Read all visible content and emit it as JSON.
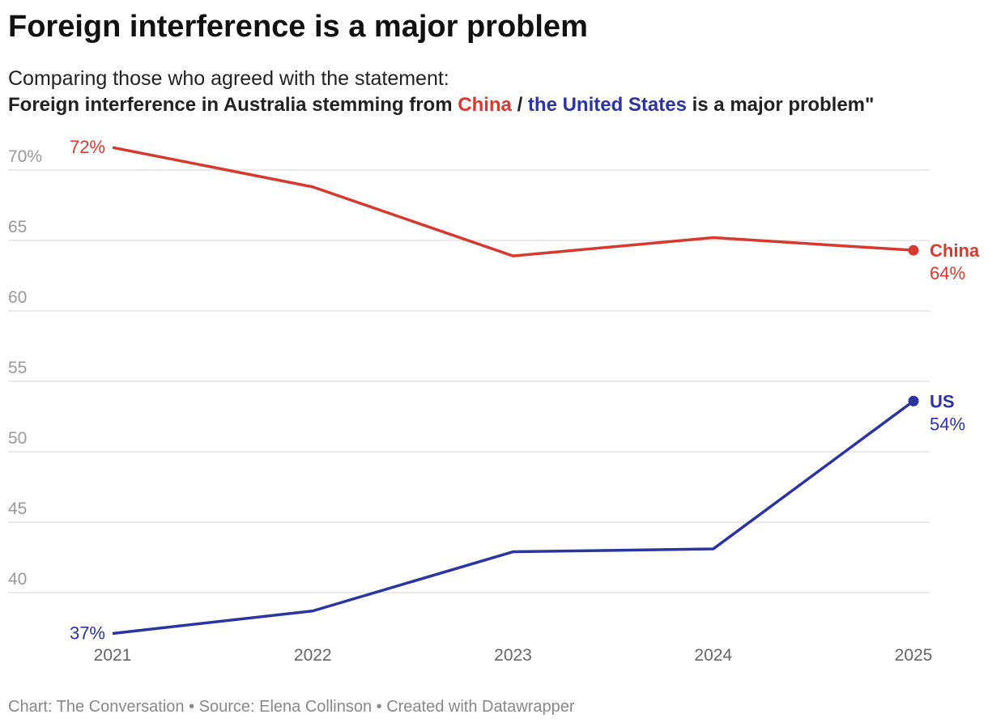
{
  "chart_data": {
    "type": "line",
    "title": "Foreign interference is a major problem",
    "subtitle_line1": "Comparing those who agreed with the statement:",
    "subtitle_line2": {
      "part1": "Foreign interference in Australia stemming from ",
      "china": "China",
      "sep": " / ",
      "us": "the United States",
      "part2": " is a major problem\""
    },
    "x": [
      2021,
      2022,
      2023,
      2024,
      2025
    ],
    "x_tick_labels": [
      "2021",
      "2022",
      "2023",
      "2024",
      "2025"
    ],
    "y_ticks": [
      40,
      45,
      50,
      55,
      60,
      65,
      70
    ],
    "y_tick_labels": [
      "40",
      "45",
      "50",
      "55",
      "60",
      "65",
      "70%"
    ],
    "ylim": [
      35,
      72
    ],
    "grid": true,
    "series": [
      {
        "name": "China",
        "color": "#d63a2e",
        "values": [
          71.6,
          68.8,
          63.9,
          65.2,
          64.3
        ],
        "start_label": "72%",
        "end_label": "64%"
      },
      {
        "name": "US",
        "color": "#2b35a0",
        "values": [
          37.1,
          38.7,
          42.9,
          43.1,
          53.6
        ],
        "start_label": "37%",
        "end_label": "54%"
      }
    ],
    "footer": "Chart: The Conversation • Source: Elena Collinson • Created with Datawrapper"
  }
}
